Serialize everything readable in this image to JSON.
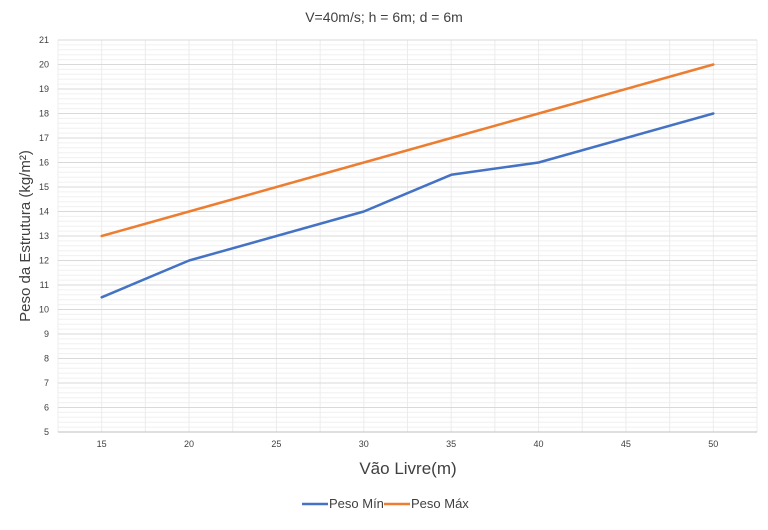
{
  "chart_data": {
    "type": "line",
    "title": "V=40m/s; h = 6m; d = 6m",
    "xlabel": "Vão Livre(m)",
    "ylabel": "Peso da Estrutura (kg/m²)",
    "x": [
      15,
      20,
      25,
      30,
      35,
      40,
      45,
      50
    ],
    "x_ticks": [
      "15",
      "20",
      "25",
      "30",
      "35",
      "40",
      "45",
      "50"
    ],
    "y_ticks": [
      "5",
      "6",
      "7",
      "8",
      "9",
      "10",
      "11",
      "12",
      "13",
      "14",
      "15",
      "16",
      "17",
      "18",
      "19",
      "20",
      "21"
    ],
    "ylim": [
      5,
      21
    ],
    "grid": true,
    "legend_position": "bottom",
    "series": [
      {
        "name": "Peso Mín",
        "color": "#4472C4",
        "x": [
          15,
          20,
          30,
          35,
          40,
          50
        ],
        "y": [
          10.5,
          12,
          14,
          15.5,
          16,
          18
        ]
      },
      {
        "name": "Peso Máx",
        "color": "#ED7D31",
        "x": [
          15,
          20,
          30,
          35,
          40,
          50
        ],
        "y": [
          13,
          14,
          16,
          17,
          18,
          20
        ]
      }
    ]
  }
}
